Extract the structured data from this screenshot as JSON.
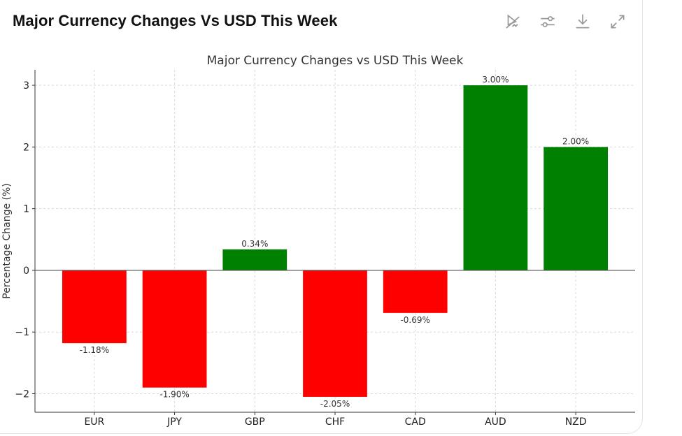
{
  "header": {
    "title": "Major Currency Changes Vs USD This Week",
    "tools": [
      {
        "icon": "interactive-toggle-icon"
      },
      {
        "icon": "sliders-icon"
      },
      {
        "icon": "download-icon"
      },
      {
        "icon": "expand-icon"
      }
    ]
  },
  "chart_data": {
    "type": "bar",
    "title": "Major Currency Changes vs USD This Week",
    "xlabel": "",
    "ylabel": "Percentage Change (%)",
    "categories": [
      "EUR",
      "JPY",
      "GBP",
      "CHF",
      "CAD",
      "AUD",
      "NZD"
    ],
    "values": [
      -1.18,
      -1.9,
      0.34,
      -2.05,
      -0.69,
      3.0,
      2.0
    ],
    "data_labels": [
      "-1.18%",
      "-1.90%",
      "0.34%",
      "-2.05%",
      "-0.69%",
      "3.00%",
      "2.00%"
    ],
    "ylim": [
      -2.3,
      3.25
    ],
    "yticks": [
      -2,
      -1,
      0,
      1,
      2,
      3
    ],
    "ytick_labels": [
      "−2",
      "−1",
      "0",
      "1",
      "2",
      "3"
    ],
    "grid": true,
    "colors": {
      "positive": "#008000",
      "negative": "#ff0000"
    }
  }
}
